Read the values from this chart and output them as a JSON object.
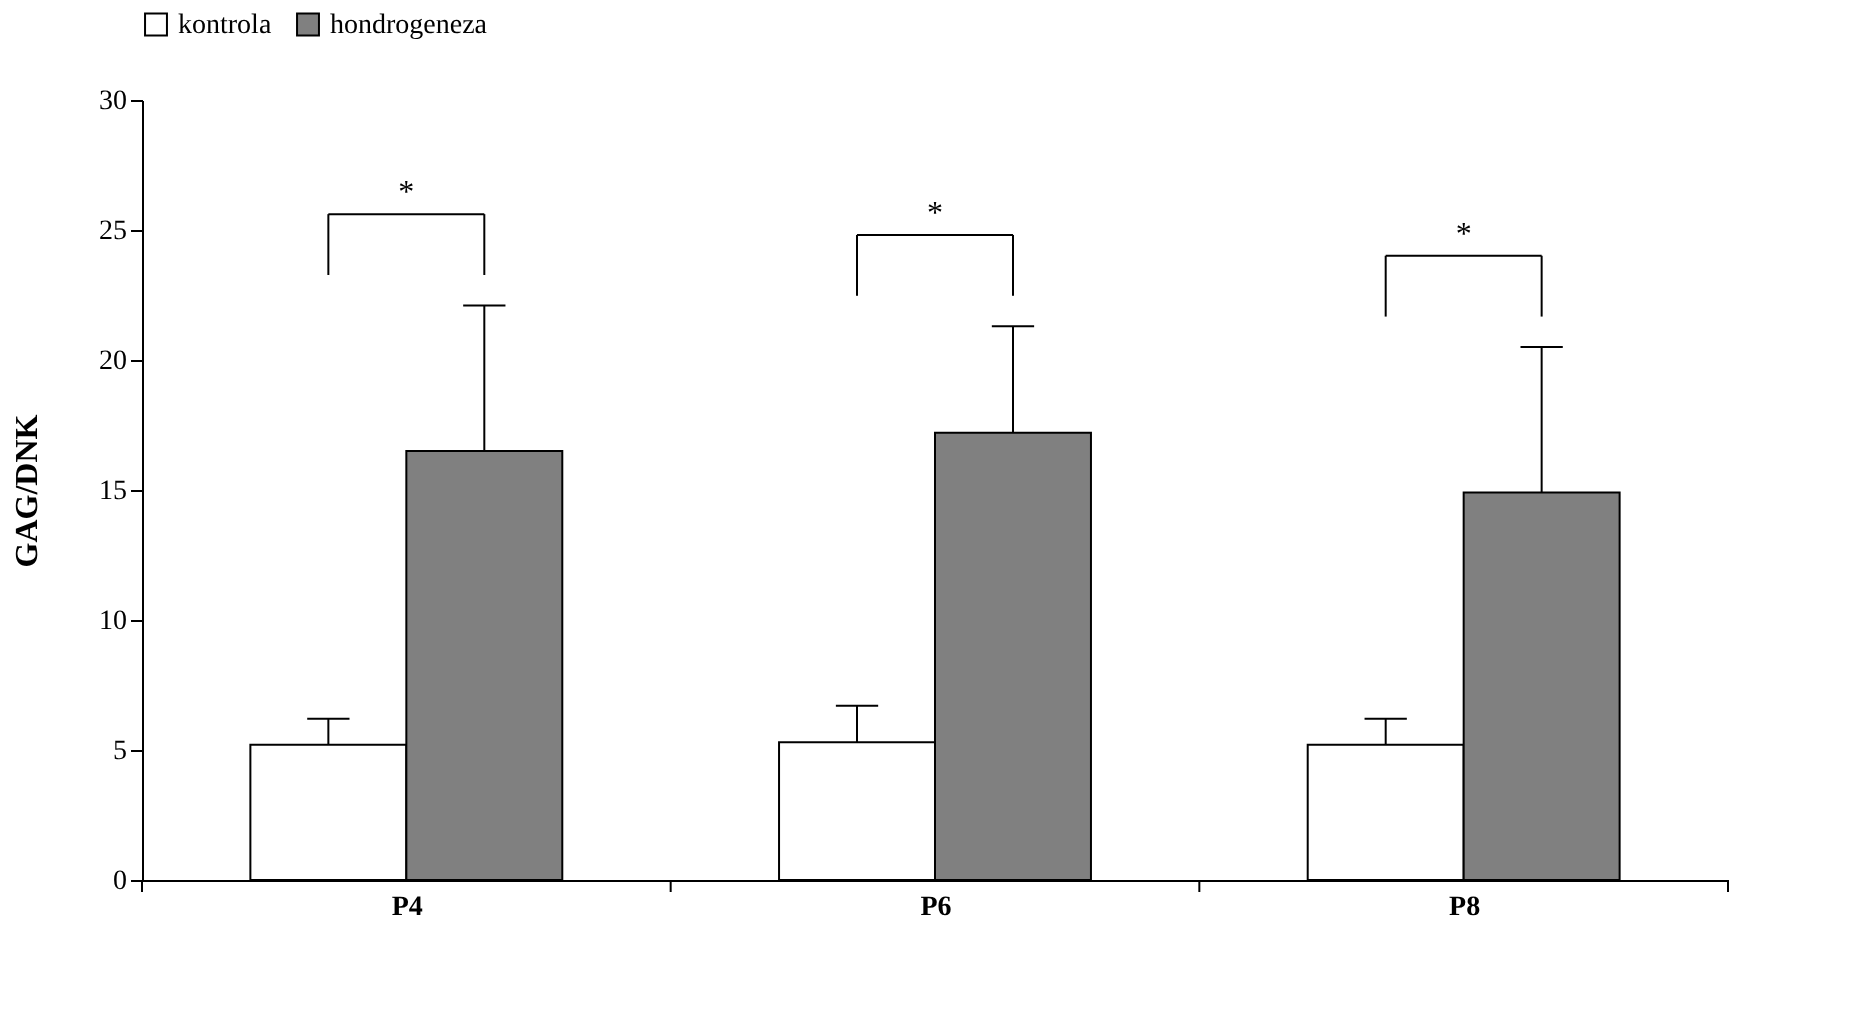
{
  "chart_data": {
    "type": "bar",
    "ylabel": "GAG/DNK",
    "categories": [
      "P4",
      "P6",
      "P8"
    ],
    "series": [
      {
        "name": "kontrola",
        "color": "#ffffff",
        "values": [
          5.2,
          5.3,
          5.2
        ],
        "errors": [
          [
            5.2,
            6.2
          ],
          [
            5.3,
            6.7
          ],
          [
            5.2,
            6.2
          ]
        ]
      },
      {
        "name": "hondrogeneza",
        "color": "#808080",
        "values": [
          16.5,
          17.2,
          14.9
        ],
        "errors": [
          [
            16.5,
            22.1
          ],
          [
            17.2,
            21.3
          ],
          [
            14.9,
            20.5
          ]
        ]
      }
    ],
    "ylim": [
      0,
      30
    ],
    "yticks": [
      0,
      5,
      10,
      15,
      20,
      25,
      30
    ],
    "grid": false,
    "legend": "top",
    "annotations": [
      "*",
      "*",
      "*"
    ]
  }
}
